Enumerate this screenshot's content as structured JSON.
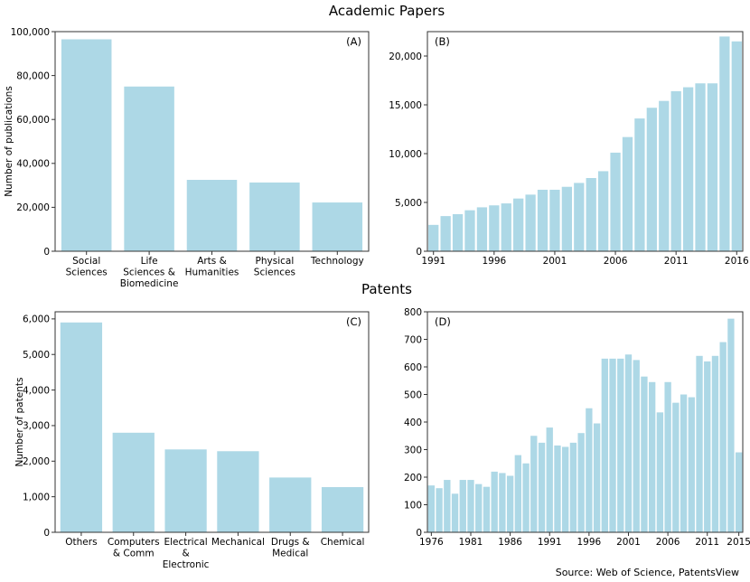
{
  "figure": {
    "section_titles": {
      "papers": "Academic Papers",
      "patents": "Patents"
    },
    "source": "Source: Web of Science, PatentsView"
  },
  "style": {
    "bar_color": "#add8e6",
    "axis_color": "#333333"
  },
  "chart_data": [
    {
      "id": "A",
      "type": "bar",
      "panel_label": "(A)",
      "ylabel": "Number of publications",
      "categories": [
        "Social\nSciences",
        "Life\nSciences &\nBiomedicine",
        "Arts &\nHumanities",
        "Physical\nSciences",
        "Technology"
      ],
      "values": [
        96500,
        75000,
        32500,
        31300,
        22200
      ],
      "ylim": [
        0,
        100000
      ],
      "yticks": [
        0,
        20000,
        40000,
        60000,
        80000,
        100000
      ],
      "ytick_labels": [
        "0",
        "20,000",
        "40,000",
        "60,000",
        "80,000",
        "100,000"
      ]
    },
    {
      "id": "B",
      "type": "bar",
      "panel_label": "(B)",
      "x": [
        1991,
        1992,
        1993,
        1994,
        1995,
        1996,
        1997,
        1998,
        1999,
        2000,
        2001,
        2002,
        2003,
        2004,
        2005,
        2006,
        2007,
        2008,
        2009,
        2010,
        2011,
        2012,
        2013,
        2014,
        2015,
        2016
      ],
      "values": [
        2700,
        3600,
        3800,
        4200,
        4500,
        4700,
        4900,
        5400,
        5800,
        6300,
        6300,
        6600,
        7000,
        7500,
        8200,
        10100,
        11700,
        13600,
        14700,
        15400,
        16400,
        16800,
        17200,
        17200,
        22000,
        21500
      ],
      "ylim": [
        0,
        22500
      ],
      "yticks": [
        0,
        5000,
        10000,
        15000,
        20000
      ],
      "ytick_labels": [
        "0",
        "5,000",
        "10,000",
        "15,000",
        "20,000"
      ],
      "xtick_labels": [
        "1991",
        "1996",
        "2001",
        "2006",
        "2011",
        "2016"
      ]
    },
    {
      "id": "C",
      "type": "bar",
      "panel_label": "(C)",
      "ylabel": "Number of patents",
      "categories": [
        "Others",
        "Computers\n& Comm",
        "Electrical\n&\nElectronic",
        "Mechanical",
        "Drugs &\nMedical",
        "Chemical"
      ],
      "values": [
        5900,
        2800,
        2330,
        2280,
        1540,
        1270
      ],
      "ylim": [
        0,
        6200
      ],
      "yticks": [
        0,
        1000,
        2000,
        3000,
        4000,
        5000,
        6000
      ],
      "ytick_labels": [
        "0",
        "1,000",
        "2,000",
        "3,000",
        "4,000",
        "5,000",
        "6,000"
      ]
    },
    {
      "id": "D",
      "type": "bar",
      "panel_label": "(D)",
      "x": [
        1976,
        1977,
        1978,
        1979,
        1980,
        1981,
        1982,
        1983,
        1984,
        1985,
        1986,
        1987,
        1988,
        1989,
        1990,
        1991,
        1992,
        1993,
        1994,
        1995,
        1996,
        1997,
        1998,
        1999,
        2000,
        2001,
        2002,
        2003,
        2004,
        2005,
        2006,
        2007,
        2008,
        2009,
        2010,
        2011,
        2012,
        2013,
        2014,
        2015
      ],
      "values": [
        170,
        160,
        190,
        140,
        190,
        190,
        175,
        165,
        220,
        215,
        205,
        280,
        250,
        350,
        325,
        380,
        315,
        310,
        325,
        360,
        450,
        395,
        630,
        630,
        630,
        645,
        625,
        565,
        545,
        435,
        545,
        470,
        500,
        490,
        640,
        620,
        640,
        690,
        775,
        290
      ],
      "ylim": [
        0,
        800
      ],
      "yticks": [
        0,
        100,
        200,
        300,
        400,
        500,
        600,
        700,
        800
      ],
      "ytick_labels": [
        "0",
        "100",
        "200",
        "300",
        "400",
        "500",
        "600",
        "700",
        "800"
      ],
      "xtick_labels": [
        "1976",
        "1981",
        "1986",
        "1991",
        "1996",
        "2001",
        "2006",
        "2011",
        "2015"
      ]
    }
  ]
}
